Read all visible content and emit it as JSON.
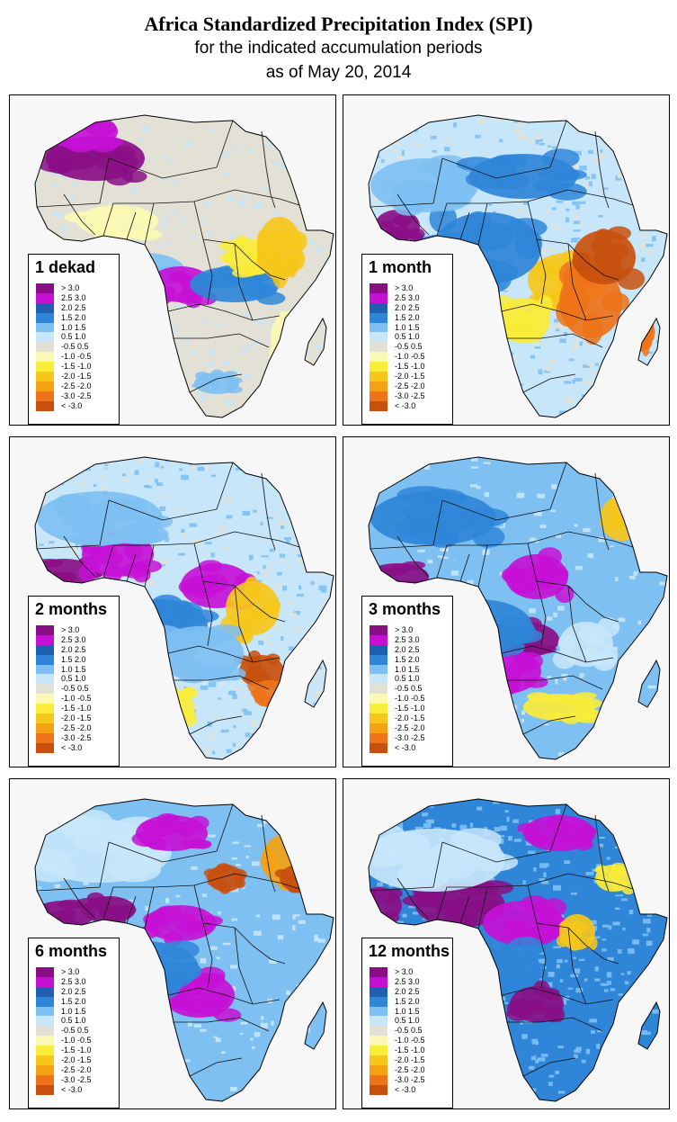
{
  "title": "Africa Standardized Precipitation Index (SPI)",
  "subtitle_1": "for the indicated accumulation periods",
  "subtitle_2": "as of May 20, 2014",
  "legend_classes": [
    {
      "label": "> 3.0",
      "color": "#8a0f86"
    },
    {
      "label": "2.5  3.0",
      "color": "#c511d6"
    },
    {
      "label": "2.0  2.5",
      "color": "#1f5fb0"
    },
    {
      "label": "1.5  2.0",
      "color": "#2f86d8"
    },
    {
      "label": "1.0  1.5",
      "color": "#7ec0f2"
    },
    {
      "label": "0.5  1.0",
      "color": "#c7e6fa"
    },
    {
      "label": "-0.5  0.5",
      "color": "#e3e1d6"
    },
    {
      "label": "-1.0 -0.5",
      "color": "#fbf9b3"
    },
    {
      "label": "-1.5 -1.0",
      "color": "#f9ec3a"
    },
    {
      "label": "-2.0 -1.5",
      "color": "#f6c71b"
    },
    {
      "label": "-2.5 -2.0",
      "color": "#f3a214"
    },
    {
      "label": "-3.0 -2.5",
      "color": "#ee7319"
    },
    {
      "label": "< -3.0",
      "color": "#c8500e"
    }
  ],
  "panels": [
    {
      "title": "1 dekad",
      "pattern": "dekad"
    },
    {
      "title": "1 month",
      "pattern": "month1"
    },
    {
      "title": "2 months",
      "pattern": "month2"
    },
    {
      "title": "3 months",
      "pattern": "month3"
    },
    {
      "title": "6 months",
      "pattern": "month6"
    },
    {
      "title": "12 months",
      "pattern": "month12"
    }
  ]
}
